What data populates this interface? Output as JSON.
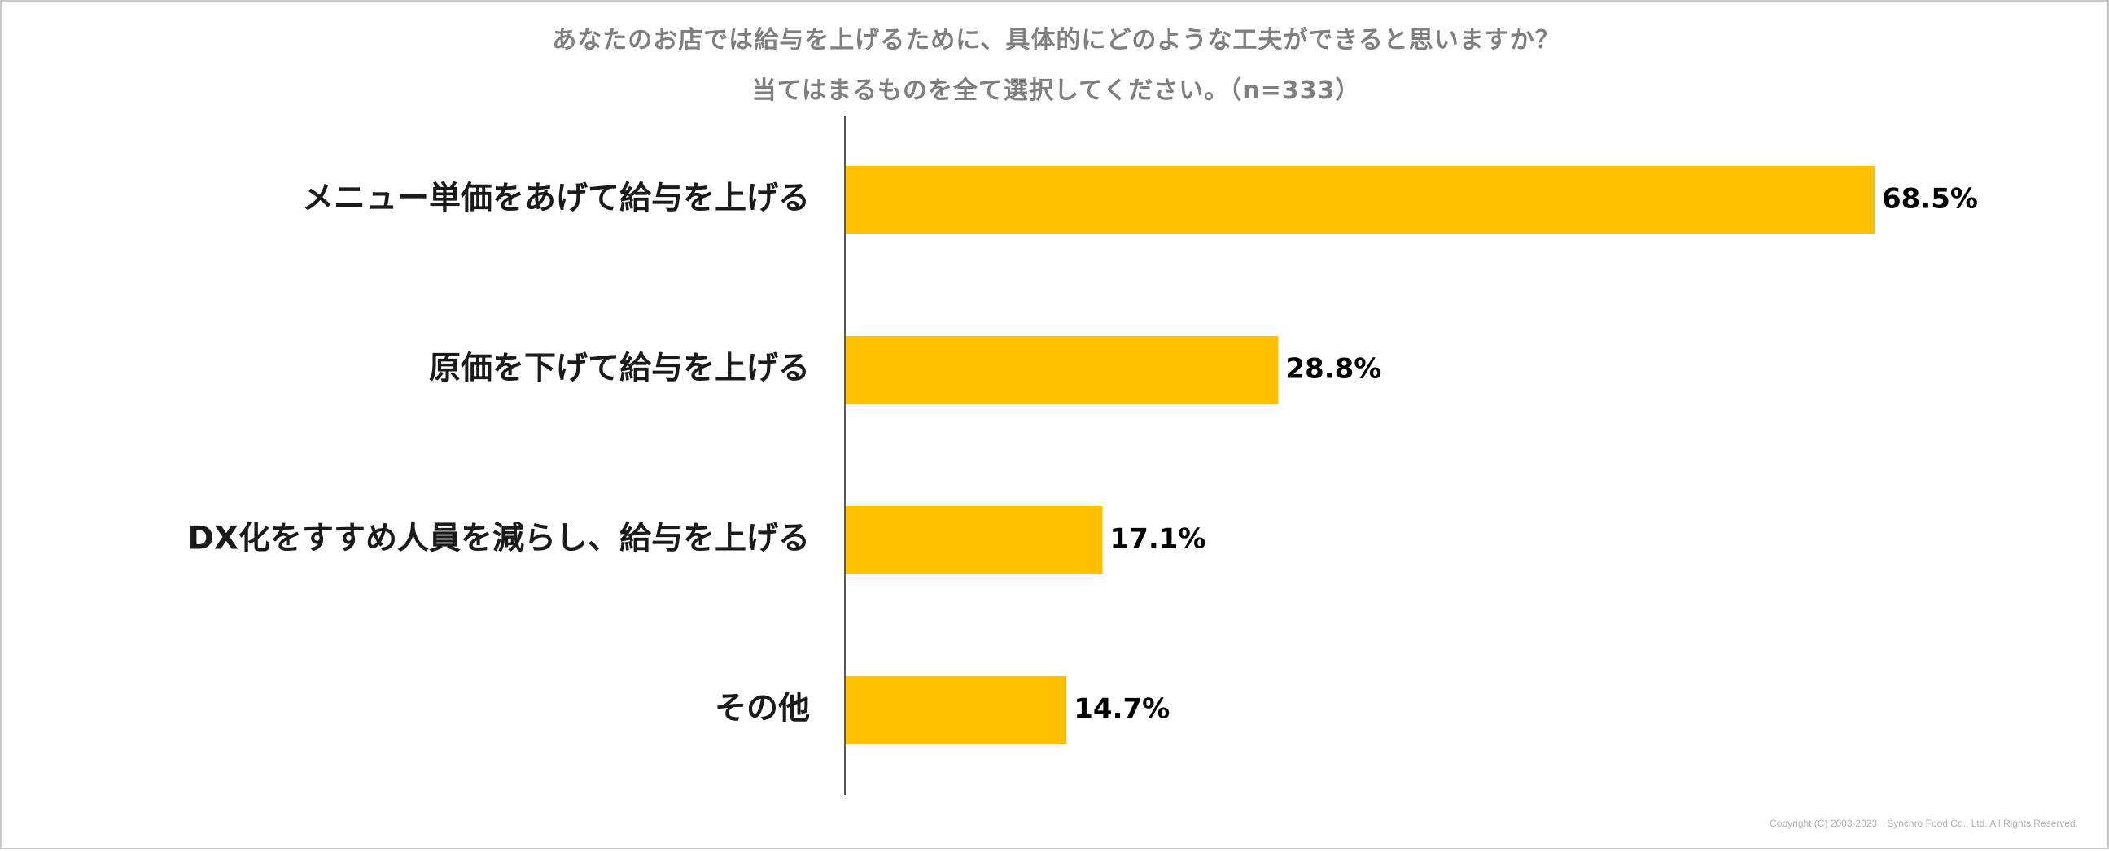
{
  "chart_data": {
    "type": "bar",
    "orientation": "horizontal",
    "title": "あなたのお店では給与を上げるために、具体的にどのような工夫ができると思いますか？",
    "subtitle": "当てはまるものを全て選択してください。（n=333）",
    "categories": [
      "メニュー単価をあげて給与を上げる",
      "原価を下げて給与を上げる",
      "DX化をすすめ人員を減らし、給与を上げる",
      "その他"
    ],
    "values": [
      68.5,
      28.8,
      17.1,
      14.7
    ],
    "value_labels": [
      "68.5%",
      "28.8%",
      "17.1%",
      "14.7%"
    ],
    "xlim": [
      0,
      80
    ],
    "bar_color": "#FFC000",
    "axis_color": "#595959",
    "grid": false,
    "legend": "none"
  },
  "footer": {
    "copyright": "Copyright (C) 2003-2023　Synchro Food Co., Ltd. All Rights Reserved."
  }
}
